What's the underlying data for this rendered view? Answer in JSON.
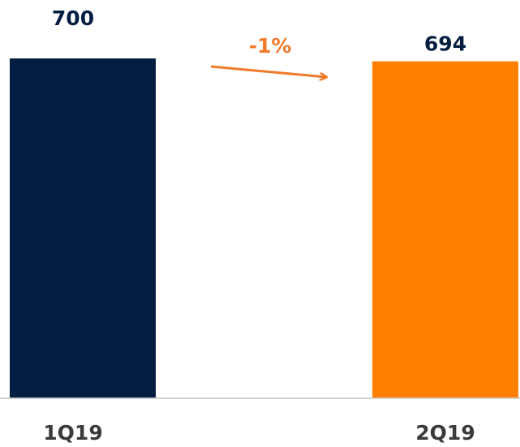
{
  "chart_data": {
    "type": "bar",
    "categories": [
      "1Q19",
      "2Q19"
    ],
    "values": [
      700,
      694
    ],
    "colors": [
      "#041e42",
      "#ff8000"
    ],
    "annotation": "-1%"
  }
}
